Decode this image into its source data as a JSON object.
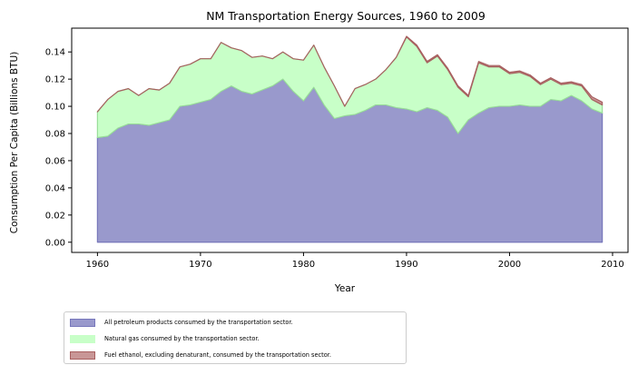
{
  "chart_data": {
    "type": "area",
    "stacked": true,
    "title": "NM Transportation Energy Sources, 1960 to 2009",
    "xlabel": "Year",
    "ylabel": "Consumption Per Capita (Billions BTU)",
    "xlim": [
      1957.5,
      2011.5
    ],
    "ylim": [
      -0.0075,
      0.1575
    ],
    "xticks": [
      1960,
      1970,
      1980,
      1990,
      2000,
      2010
    ],
    "yticks": [
      "0.00",
      "0.02",
      "0.04",
      "0.06",
      "0.08",
      "0.10",
      "0.12",
      "0.14"
    ],
    "legend_position": "below",
    "x": [
      1960,
      1961,
      1962,
      1963,
      1964,
      1965,
      1966,
      1967,
      1968,
      1969,
      1970,
      1971,
      1972,
      1973,
      1974,
      1975,
      1976,
      1977,
      1978,
      1979,
      1980,
      1981,
      1982,
      1983,
      1984,
      1985,
      1986,
      1987,
      1988,
      1989,
      1990,
      1991,
      1992,
      1993,
      1994,
      1995,
      1996,
      1997,
      1998,
      1999,
      2000,
      2001,
      2002,
      2003,
      2004,
      2005,
      2006,
      2007,
      2008,
      2009
    ],
    "series": [
      {
        "name": "All petroleum products consumed by the transportation sector.",
        "color": "#9999cc",
        "edge": "#7777bb",
        "values": [
          0.077,
          0.078,
          0.084,
          0.087,
          0.087,
          0.086,
          0.088,
          0.09,
          0.1,
          0.101,
          0.103,
          0.105,
          0.111,
          0.115,
          0.111,
          0.109,
          0.112,
          0.115,
          0.12,
          0.111,
          0.104,
          0.114,
          0.101,
          0.091,
          0.093,
          0.094,
          0.097,
          0.101,
          0.101,
          0.099,
          0.098,
          0.096,
          0.099,
          0.097,
          0.092,
          0.08,
          0.09,
          0.095,
          0.099,
          0.1,
          0.1,
          0.101,
          0.1,
          0.1,
          0.105,
          0.104,
          0.108,
          0.104,
          0.098,
          0.095
        ]
      },
      {
        "name": "Natural gas consumed by the transportation sector.",
        "color": "#c8ffc8",
        "edge": "#99dd99",
        "values": [
          0.019,
          0.027,
          0.027,
          0.026,
          0.021,
          0.027,
          0.024,
          0.027,
          0.029,
          0.03,
          0.032,
          0.03,
          0.036,
          0.028,
          0.03,
          0.027,
          0.025,
          0.02,
          0.02,
          0.024,
          0.03,
          0.031,
          0.028,
          0.024,
          0.007,
          0.019,
          0.019,
          0.019,
          0.026,
          0.037,
          0.053,
          0.048,
          0.033,
          0.04,
          0.035,
          0.034,
          0.017,
          0.037,
          0.03,
          0.029,
          0.024,
          0.024,
          0.022,
          0.016,
          0.015,
          0.012,
          0.009,
          0.011,
          0.007,
          0.006
        ]
      },
      {
        "name": "Fuel ethanol, excluding denaturant, consumed by the transportation sector.",
        "color": "#c89696",
        "edge": "#a86060",
        "values": [
          0,
          0,
          0,
          0,
          0,
          0,
          0,
          0,
          0,
          0,
          0,
          0,
          0,
          0,
          0,
          0,
          0,
          0,
          0,
          0,
          0,
          0,
          0,
          0,
          0,
          0,
          0,
          0,
          0,
          0,
          0.0005,
          0.001,
          0.001,
          0.001,
          0.001,
          0.001,
          0.001,
          0.001,
          0.001,
          0.001,
          0.001,
          0.001,
          0.001,
          0.001,
          0.001,
          0.001,
          0.001,
          0.001,
          0.002,
          0.002
        ]
      }
    ]
  }
}
